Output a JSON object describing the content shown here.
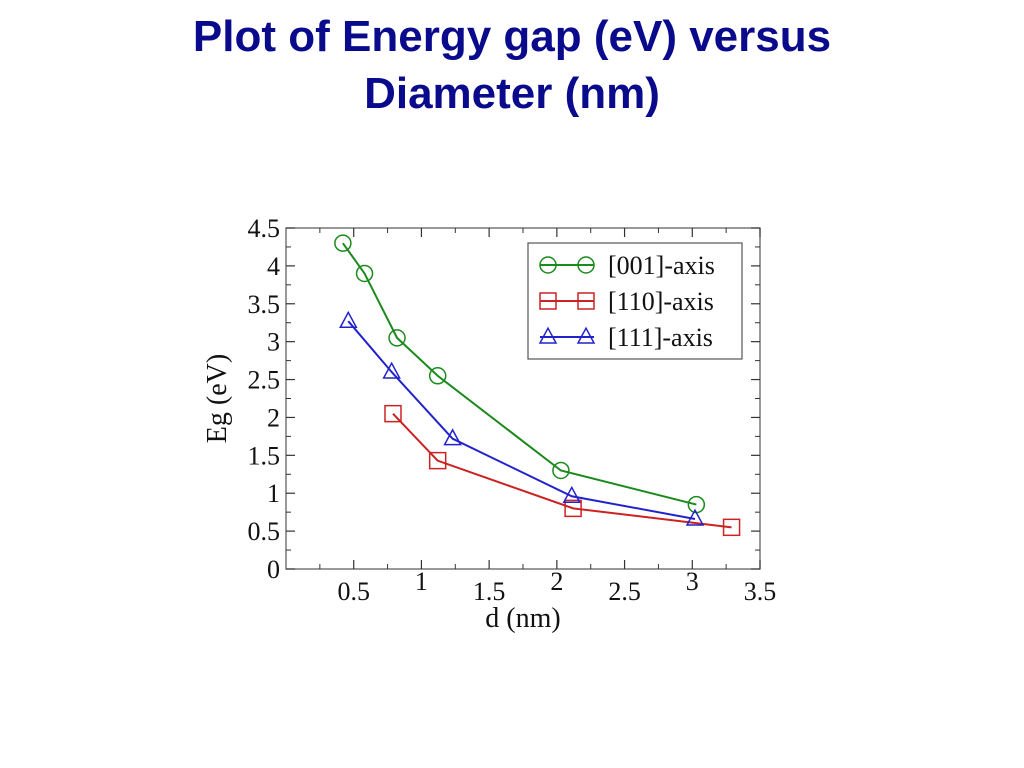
{
  "slide": {
    "title_line1": "Plot of Energy gap (eV) versus",
    "title_line2": "Diameter (nm)",
    "title_color": "#0a0a8c"
  },
  "chart_data": {
    "type": "line",
    "title": "",
    "xlabel": "d (nm)",
    "ylabel": "Eg (eV)",
    "xlim": [
      0,
      3.5
    ],
    "ylim": [
      0,
      4.5
    ],
    "xticks": [
      0.5,
      1,
      1.5,
      2,
      2.5,
      3,
      3.5
    ],
    "xtick_labels": [
      "0.5",
      "1",
      "1.5",
      "2",
      "2.5",
      "3",
      "3.5"
    ],
    "yticks": [
      0,
      0.5,
      1,
      1.5,
      2,
      2.5,
      3,
      3.5,
      4,
      4.5
    ],
    "ytick_labels": [
      "0",
      "0.5",
      "1",
      "1.5",
      "2",
      "2.5",
      "3",
      "3.5",
      "4",
      "4.5"
    ],
    "grid": false,
    "legend_position": "top-right",
    "series": [
      {
        "name": "[001]-axis",
        "color": "#1a8a1a",
        "marker": "circle",
        "x": [
          0.42,
          0.58,
          0.82,
          1.12,
          2.03,
          3.03
        ],
        "y": [
          4.3,
          3.9,
          3.05,
          2.55,
          1.3,
          0.85
        ]
      },
      {
        "name": "[110]-axis",
        "color": "#cc2222",
        "marker": "square",
        "x": [
          0.79,
          1.12,
          2.12,
          3.29
        ],
        "y": [
          2.05,
          1.43,
          0.8,
          0.55
        ]
      },
      {
        "name": "[111]-axis",
        "color": "#2222cc",
        "marker": "triangle",
        "x": [
          0.46,
          0.78,
          1.23,
          2.11,
          3.02
        ],
        "y": [
          3.27,
          2.6,
          1.72,
          0.96,
          0.66
        ]
      }
    ]
  }
}
